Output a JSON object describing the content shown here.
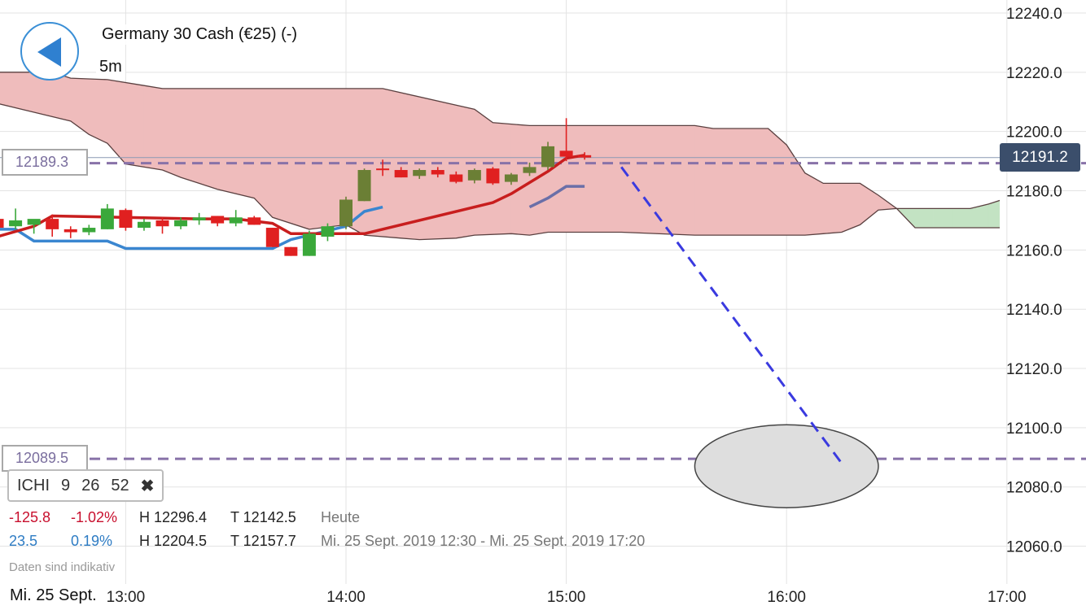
{
  "header": {
    "title": "Germany 30 Cash (€25) (-)",
    "timeframe": "5m"
  },
  "indicator": {
    "name": "ICHI",
    "params": [
      "9",
      "26",
      "52"
    ],
    "close_symbol": "✖"
  },
  "price_levels": {
    "upper": "12189.3",
    "lower": "12089.5",
    "current": "12191.2"
  },
  "stats": {
    "today": {
      "change": "-125.8",
      "pct": "-1.02%",
      "high": "H 12296.4",
      "low": "T 12142.5",
      "label": "Heute"
    },
    "range": {
      "change": "23.5",
      "pct": "0.19%",
      "high": "H 12204.5",
      "low": "T 12157.7",
      "label": "Mi. 25 Sept. 2019 12:30 - Mi. 25 Sept. 2019 17:20"
    }
  },
  "footer": {
    "note": "Daten sind indikativ",
    "date": "Mi. 25 Sept."
  },
  "colors": {
    "bull": "#3aa83a",
    "bull_dark": "#6b7f35",
    "bear": "#e02020",
    "tenkan": "#c81e1e",
    "kijun": "#3a86d0",
    "kijun_late": "#6a6fa8",
    "cloud_bear": "#efbcbc",
    "cloud_bull": "#c3e3c3",
    "levels": "#8872a8",
    "trend": "#3a3adf",
    "red_text": "#c8102e",
    "blue_text": "#2e7cc4",
    "grey_text": "#777777"
  },
  "chart_data": {
    "type": "candlestick",
    "timeframe": "5m",
    "x_ticks": [
      "13:00",
      "14:00",
      "15:00",
      "16:00",
      "17:00"
    ],
    "y_ticks": [
      12060.0,
      12080.0,
      12100.0,
      12120.0,
      12140.0,
      12160.0,
      12180.0,
      12200.0,
      12220.0,
      12240.0
    ],
    "ylim": [
      12049,
      12244
    ],
    "xlim": [
      "12:25",
      "17:22"
    ],
    "candles": [
      {
        "t": "12:25",
        "o": 12170.5,
        "h": 12172.5,
        "l": 12168.0,
        "c": 12167.5
      },
      {
        "t": "12:30",
        "o": 12168.0,
        "h": 12174.0,
        "l": 12167.0,
        "c": 12170.0
      },
      {
        "t": "12:35",
        "o": 12168.5,
        "h": 12170.0,
        "l": 12165.5,
        "c": 12170.5
      },
      {
        "t": "12:40",
        "o": 12170.5,
        "h": 12172.0,
        "l": 12164.5,
        "c": 12167.0
      },
      {
        "t": "12:45",
        "o": 12167.0,
        "h": 12168.0,
        "l": 12164.0,
        "c": 12166.0
      },
      {
        "t": "12:50",
        "o": 12166.0,
        "h": 12168.5,
        "l": 12165.0,
        "c": 12167.5
      },
      {
        "t": "12:55",
        "o": 12167.0,
        "h": 12175.5,
        "l": 12167.0,
        "c": 12174.0
      },
      {
        "t": "13:00",
        "o": 12173.5,
        "h": 12174.0,
        "l": 12166.5,
        "c": 12167.5
      },
      {
        "t": "13:05",
        "o": 12167.5,
        "h": 12170.5,
        "l": 12166.5,
        "c": 12169.5
      },
      {
        "t": "13:10",
        "o": 12170.0,
        "h": 12171.0,
        "l": 12165.5,
        "c": 12168.0
      },
      {
        "t": "13:15",
        "o": 12168.0,
        "h": 12171.0,
        "l": 12167.0,
        "c": 12170.0
      },
      {
        "t": "13:20",
        "o": 12170.0,
        "h": 12172.5,
        "l": 12168.5,
        "c": 12171.0
      },
      {
        "t": "13:25",
        "o": 12171.5,
        "h": 12171.5,
        "l": 12168.0,
        "c": 12169.0
      },
      {
        "t": "13:30",
        "o": 12169.0,
        "h": 12173.5,
        "l": 12168.0,
        "c": 12171.0
      },
      {
        "t": "13:35",
        "o": 12171.0,
        "h": 12171.5,
        "l": 12168.5,
        "c": 12168.5
      },
      {
        "t": "13:40",
        "o": 12167.5,
        "h": 12167.5,
        "l": 12161.0,
        "c": 12161.0
      },
      {
        "t": "13:45",
        "o": 12161.0,
        "h": 12161.0,
        "l": 12158.0,
        "c": 12158.0
      },
      {
        "t": "13:50",
        "o": 12158.0,
        "h": 12166.5,
        "l": 12158.0,
        "c": 12165.5
      },
      {
        "t": "13:55",
        "o": 12164.5,
        "h": 12169.0,
        "l": 12163.0,
        "c": 12168.0
      },
      {
        "t": "14:00",
        "o": 12168.0,
        "h": 12178.0,
        "l": 12167.0,
        "c": 12177.0
      },
      {
        "t": "14:05",
        "o": 12176.5,
        "h": 12187.5,
        "l": 12176.5,
        "c": 12187.0
      },
      {
        "t": "14:10",
        "o": 12187.5,
        "h": 12190.5,
        "l": 12185.0,
        "c": 12187.0
      },
      {
        "t": "14:15",
        "o": 12187.0,
        "h": 12188.0,
        "l": 12184.5,
        "c": 12184.5
      },
      {
        "t": "14:20",
        "o": 12185.0,
        "h": 12187.5,
        "l": 12184.0,
        "c": 12187.0
      },
      {
        "t": "14:25",
        "o": 12187.0,
        "h": 12188.0,
        "l": 12184.5,
        "c": 12185.5
      },
      {
        "t": "14:30",
        "o": 12185.5,
        "h": 12186.5,
        "l": 12182.5,
        "c": 12183.0
      },
      {
        "t": "14:35",
        "o": 12183.5,
        "h": 12187.5,
        "l": 12182.5,
        "c": 12187.0
      },
      {
        "t": "14:40",
        "o": 12187.5,
        "h": 12188.0,
        "l": 12182.0,
        "c": 12182.5
      },
      {
        "t": "14:45",
        "o": 12183.0,
        "h": 12186.0,
        "l": 12182.0,
        "c": 12185.5
      },
      {
        "t": "14:50",
        "o": 12186.0,
        "h": 12189.5,
        "l": 12185.0,
        "c": 12188.0
      },
      {
        "t": "14:55",
        "o": 12188.0,
        "h": 12196.5,
        "l": 12187.0,
        "c": 12195.0
      },
      {
        "t": "15:00",
        "o": 12193.5,
        "h": 12204.5,
        "l": 12190.0,
        "c": 12191.5
      },
      {
        "t": "15:05",
        "o": 12192.0,
        "h": 12193.0,
        "l": 12190.5,
        "c": 12191.2
      }
    ],
    "tenkan_sen": [
      [
        "12:25",
        12164.5
      ],
      [
        "12:35",
        12168.0
      ],
      [
        "12:40",
        12171.5
      ],
      [
        "13:20",
        12170.5
      ],
      [
        "13:30",
        12170.5
      ],
      [
        "13:40",
        12169.0
      ],
      [
        "13:45",
        12165.5
      ],
      [
        "14:05",
        12165.5
      ],
      [
        "14:40",
        12176.0
      ],
      [
        "14:45",
        12179.0
      ],
      [
        "14:55",
        12186.5
      ],
      [
        "15:00",
        12191.0
      ],
      [
        "15:05",
        12192.0
      ]
    ],
    "kijun_sen": [
      [
        "12:25",
        12167.0
      ],
      [
        "12:30",
        12167.0
      ],
      [
        "12:35",
        12163.0
      ],
      [
        "12:55",
        12163.0
      ],
      [
        "13:00",
        12160.5
      ],
      [
        "13:40",
        12160.5
      ],
      [
        "13:45",
        12163.5
      ],
      [
        "14:00",
        12168.0
      ],
      [
        "14:05",
        12173.0
      ],
      [
        "14:10",
        12174.5
      ],
      [
        "14:50",
        12174.5
      ],
      [
        "14:55",
        12177.5
      ],
      [
        "15:00",
        12181.5
      ],
      [
        "15:05",
        12181.5
      ]
    ],
    "senkou_a": [
      [
        "12:25",
        12209.5
      ],
      [
        "12:35",
        12206.5
      ],
      [
        "12:45",
        12203.5
      ],
      [
        "12:50",
        12199.0
      ],
      [
        "12:55",
        12196.0
      ],
      [
        "13:00",
        12189.0
      ],
      [
        "13:10",
        12187.0
      ],
      [
        "13:15",
        12184.5
      ],
      [
        "13:20",
        12182.5
      ],
      [
        "13:25",
        12180.5
      ],
      [
        "13:35",
        12177.5
      ],
      [
        "13:40",
        12171.0
      ],
      [
        "13:50",
        12167.0
      ],
      [
        "14:00",
        12168.5
      ],
      [
        "14:05",
        12165.0
      ],
      [
        "14:15",
        12164.0
      ],
      [
        "14:20",
        12163.5
      ],
      [
        "14:30",
        12164.0
      ],
      [
        "14:35",
        12165.0
      ],
      [
        "14:45",
        12165.5
      ],
      [
        "14:50",
        12165.0
      ],
      [
        "14:55",
        12166.0
      ],
      [
        "15:15",
        12166.0
      ],
      [
        "15:35",
        12165.0
      ],
      [
        "16:00",
        12165.0
      ],
      [
        "16:05",
        12165.0
      ],
      [
        "16:10",
        12165.5
      ],
      [
        "16:15",
        12166.0
      ],
      [
        "16:20",
        12168.5
      ],
      [
        "16:25",
        12173.5
      ],
      [
        "16:30",
        12174.0
      ],
      [
        "16:40",
        12174.0
      ],
      [
        "16:50",
        12174.0
      ],
      [
        "16:55",
        12175.5
      ],
      [
        "17:00",
        12177.5
      ],
      [
        "17:05",
        12179.0
      ],
      [
        "17:10",
        12181.0
      ],
      [
        "17:20",
        12181.0
      ]
    ],
    "senkou_b": [
      [
        "12:25",
        12220.0
      ],
      [
        "12:30",
        12220.0
      ],
      [
        "12:40",
        12220.0
      ],
      [
        "12:45",
        12218.0
      ],
      [
        "12:55",
        12217.5
      ],
      [
        "13:05",
        12215.5
      ],
      [
        "13:10",
        12214.5
      ],
      [
        "13:35",
        12214.5
      ],
      [
        "14:10",
        12214.5
      ],
      [
        "14:35",
        12207.5
      ],
      [
        "14:40",
        12203.0
      ],
      [
        "14:50",
        12202.0
      ],
      [
        "15:00",
        12202.0
      ],
      [
        "15:35",
        12202.0
      ],
      [
        "15:40",
        12201.0
      ],
      [
        "15:55",
        12201.0
      ],
      [
        "16:00",
        12195.5
      ],
      [
        "16:05",
        12186.0
      ],
      [
        "16:10",
        12182.5
      ],
      [
        "16:20",
        12182.5
      ],
      [
        "16:25",
        12178.5
      ],
      [
        "16:30",
        12174.0
      ],
      [
        "16:35",
        12167.5
      ],
      [
        "16:45",
        12167.5
      ],
      [
        "17:20",
        12167.5
      ]
    ],
    "levels": [
      12189.3,
      12089.5
    ],
    "current_price": 12191.2,
    "trend_line": [
      [
        "15:15",
        12188.0
      ],
      [
        "16:15",
        12088.0
      ]
    ],
    "target_zone": {
      "center": [
        "16:00",
        12090.0
      ],
      "x_range": [
        "15:35",
        "16:25"
      ],
      "y_range": [
        12073.0,
        12101.0
      ]
    }
  }
}
